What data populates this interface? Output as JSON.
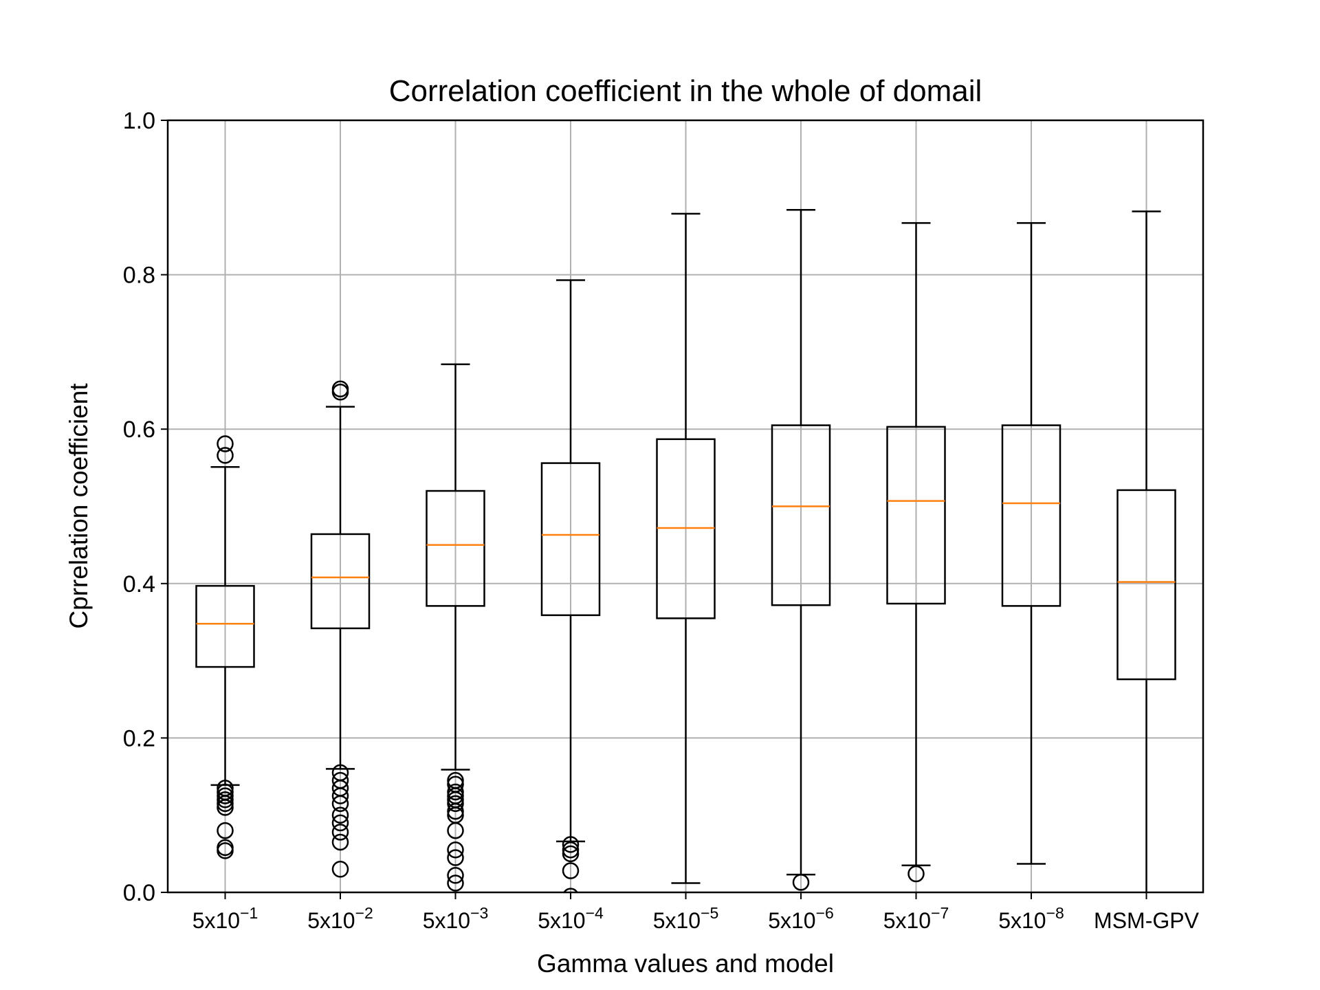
{
  "colors": {
    "box": "#000000",
    "median": "#ff7f0e",
    "grid": "#b0b0b0",
    "background": "#ffffff"
  },
  "chart_data": {
    "type": "boxplot",
    "title": "Correlation coefficient in the whole of domail",
    "xlabel": "Gamma values and model",
    "ylabel": "Cprrelation coefficient",
    "ylim": [
      0.0,
      1.0
    ],
    "yticks": [
      "0.0",
      "0.2",
      "0.4",
      "0.6",
      "0.8",
      "1.0"
    ],
    "grid": true,
    "categories": [
      {
        "base": "5x10",
        "exp": "−1"
      },
      {
        "base": "5x10",
        "exp": "−2"
      },
      {
        "base": "5x10",
        "exp": "−3"
      },
      {
        "base": "5x10",
        "exp": "−4"
      },
      {
        "base": "5x10",
        "exp": "−5"
      },
      {
        "base": "5x10",
        "exp": "−6"
      },
      {
        "base": "5x10",
        "exp": "−7"
      },
      {
        "base": "5x10",
        "exp": "−8"
      },
      {
        "base": "MSM-GPV",
        "exp": ""
      }
    ],
    "boxes": [
      {
        "whisker_low": 0.139,
        "q1": 0.292,
        "median": 0.348,
        "q3": 0.397,
        "whisker_high": 0.551,
        "outliers": [
          0.581,
          0.566,
          0.135,
          0.13,
          0.125,
          0.12,
          0.115,
          0.11,
          0.08,
          0.058,
          0.054
        ]
      },
      {
        "whisker_low": 0.16,
        "q1": 0.342,
        "median": 0.408,
        "q3": 0.464,
        "whisker_high": 0.629,
        "outliers": [
          0.652,
          0.648,
          0.155,
          0.145,
          0.135,
          0.125,
          0.115,
          0.1,
          0.09,
          0.078,
          0.065,
          0.03
        ]
      },
      {
        "whisker_low": 0.159,
        "q1": 0.371,
        "median": 0.45,
        "q3": 0.52,
        "whisker_high": 0.684,
        "outliers": [
          0.145,
          0.14,
          0.13,
          0.125,
          0.12,
          0.115,
          0.105,
          0.1,
          0.08,
          0.055,
          0.045,
          0.022,
          0.012
        ]
      },
      {
        "whisker_low": 0.066,
        "q1": 0.359,
        "median": 0.463,
        "q3": 0.556,
        "whisker_high": 0.793,
        "outliers": [
          0.062,
          0.055,
          0.05,
          0.028,
          -0.005
        ]
      },
      {
        "whisker_low": 0.012,
        "q1": 0.355,
        "median": 0.472,
        "q3": 0.587,
        "whisker_high": 0.879,
        "outliers": []
      },
      {
        "whisker_low": 0.023,
        "q1": 0.372,
        "median": 0.5,
        "q3": 0.605,
        "whisker_high": 0.884,
        "outliers": [
          0.013
        ]
      },
      {
        "whisker_low": 0.035,
        "q1": 0.374,
        "median": 0.507,
        "q3": 0.603,
        "whisker_high": 0.867,
        "outliers": [
          0.024
        ]
      },
      {
        "whisker_low": 0.037,
        "q1": 0.371,
        "median": 0.504,
        "q3": 0.605,
        "whisker_high": 0.867,
        "outliers": []
      },
      {
        "whisker_low": -0.02,
        "q1": 0.276,
        "median": 0.402,
        "q3": 0.521,
        "whisker_high": 0.882,
        "outliers": []
      }
    ]
  }
}
